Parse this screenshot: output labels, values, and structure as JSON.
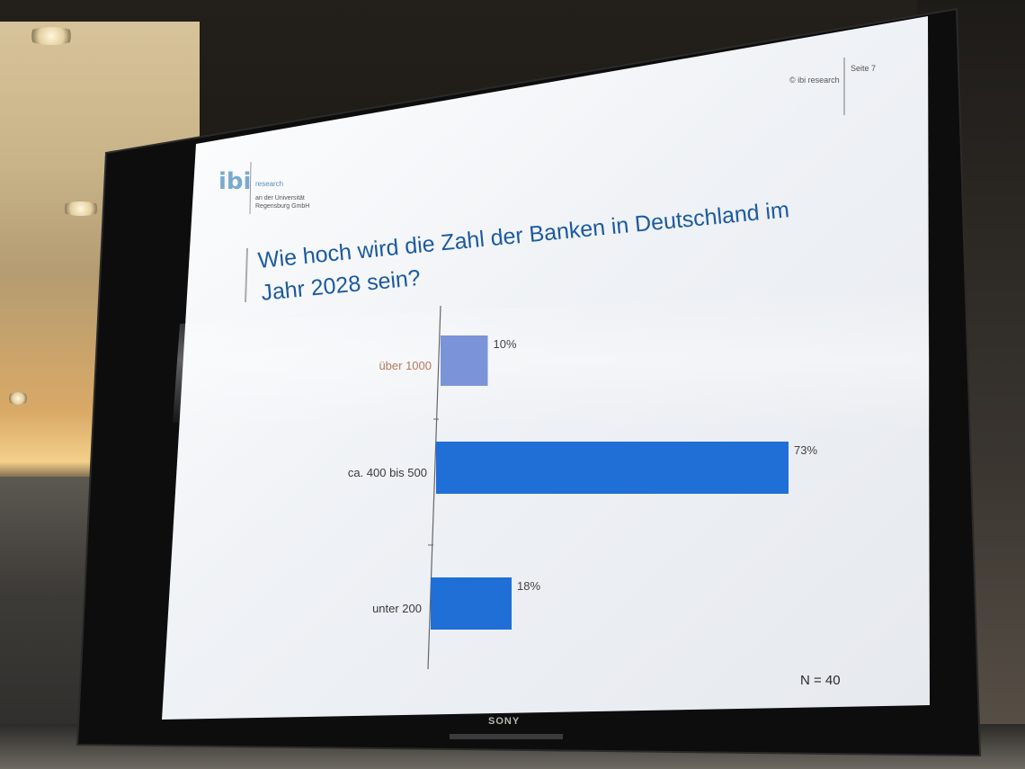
{
  "slide": {
    "header_left": "© ibi research",
    "header_right": "Seite 7",
    "logo_mark": "ibi",
    "logo_lines": [
      "research",
      "an der Universität",
      "Regensburg GmbH"
    ],
    "title_lines": [
      "Wie hoch wird die Zahl der Banken in Deutschland im",
      "Jahr 2028 sein?"
    ],
    "sample_size": "N = 40"
  },
  "monitor": {
    "brand": "SONY"
  },
  "colors": {
    "bar": "#1f6fd6",
    "title": "#1b5a9e",
    "label": "#3a3a3a"
  },
  "chart_data": {
    "type": "bar",
    "orientation": "horizontal",
    "categories": [
      "über 1000",
      "ca. 400 bis 500",
      "unter 200"
    ],
    "values": [
      10,
      73,
      18
    ],
    "value_labels": [
      "10%",
      "73%",
      "18%"
    ],
    "unit": "%",
    "xlim": [
      0,
      80
    ],
    "grid": false,
    "legend": "none"
  }
}
